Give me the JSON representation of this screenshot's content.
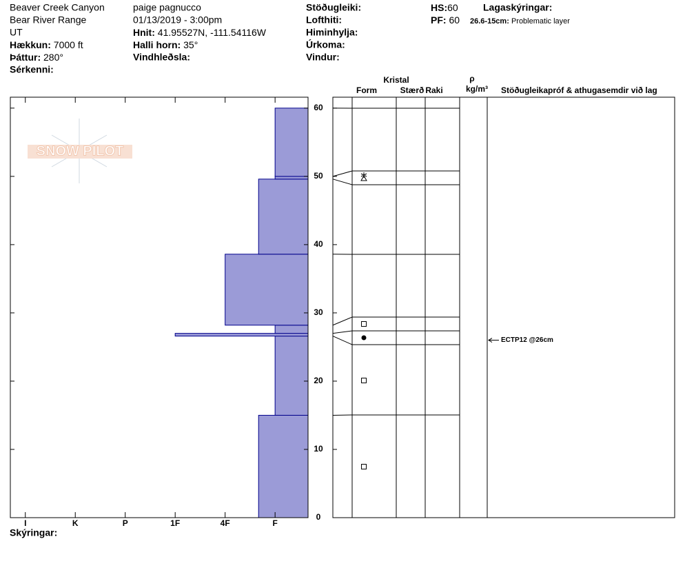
{
  "header": {
    "location": "Beaver Creek Canyon",
    "range": "Bear River Range",
    "state": "UT",
    "elevation": {
      "label": "Hækkun:",
      "value": "7000 ft"
    },
    "aspect": {
      "label": "Þáttur:",
      "value": "280°"
    },
    "features": "Sérkenni:",
    "observer": "paige pagnucco",
    "datetime": "01/13/2019 - 3:00pm",
    "coords": {
      "label": "Hnit:",
      "value": "41.95527N, -111.54116W"
    },
    "slope": {
      "label": "Halli horn:",
      "value": "35°"
    },
    "wind_loading": "Vindhleðsla:",
    "stability": "Stöðugleiki:",
    "air_temp": "Lofthiti:",
    "sky": "Himinhylja:",
    "precip": "Úrkoma:",
    "wind": "Vindur:",
    "hs": {
      "label": "HS:",
      "value": 60
    },
    "pf": {
      "label": "PF:",
      "value": 60
    },
    "layer_notes": {
      "label": "Lagaskýringar:",
      "item_label": "26.6-15cm:",
      "item_text": "Problematic layer"
    },
    "legend_label": "Skýringar:",
    "watermark": "SNOW PILOT"
  },
  "chart_data": {
    "type": "snow-profile",
    "color": "#9b9bd7",
    "ylim": [
      0,
      61.6
    ],
    "yticks": [
      0,
      10,
      20,
      30,
      40,
      50,
      60
    ],
    "xlim": [
      0.34,
      6.3
    ],
    "xticks": [
      {
        "value": 6,
        "label": "I"
      },
      {
        "value": 5,
        "label": "K"
      },
      {
        "value": 4,
        "label": "P"
      },
      {
        "value": 3,
        "label": "1F"
      },
      {
        "value": 2,
        "label": "4F"
      },
      {
        "value": 1,
        "label": "F"
      }
    ],
    "layers": [
      {
        "bottom": 0,
        "top": 15,
        "hardness": 1.33
      },
      {
        "bottom": 15,
        "top": 26.6,
        "hardness": 1
      },
      {
        "bottom": 26.6,
        "top": 27,
        "hardness": 3
      },
      {
        "bottom": 27,
        "top": 28.2,
        "hardness": 1
      },
      {
        "bottom": 28.2,
        "top": 38.6,
        "hardness": 2
      },
      {
        "bottom": 38.6,
        "top": 49.6,
        "hardness": 1.33
      },
      {
        "bottom": 49.6,
        "top": 50,
        "hardness": 1
      },
      {
        "bottom": 50,
        "top": 60,
        "hardness": 1
      }
    ],
    "columns": {
      "crystal": "Kristal",
      "form": "Form",
      "size": "Stærð",
      "moisture": "Raki",
      "rho": "ρ",
      "density_unit": "kg/m³",
      "tests": "Stöðugleikapróf & athugasemdir við lag"
    },
    "test": {
      "text": "ECTP12 @26cm",
      "depth": 26
    }
  }
}
